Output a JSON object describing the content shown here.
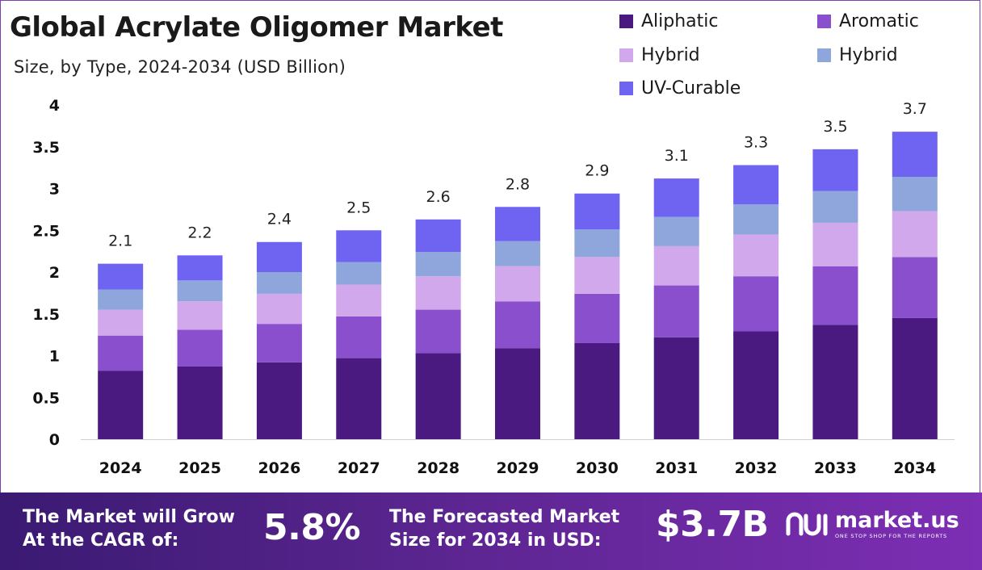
{
  "title": "Global Acrylate Oligomer Market",
  "subtitle": "Size, by Type, 2024-2034 (USD Billion)",
  "legend": [
    {
      "label": "Aliphatic",
      "color": "#4a1a80"
    },
    {
      "label": "Aromatic",
      "color": "#8a4fcc"
    },
    {
      "label": "Hybrid",
      "color": "#d2a8ec"
    },
    {
      "label": "Hybrid",
      "color": "#8fa6dc"
    },
    {
      "label": "UV-Curable",
      "color": "#6f63f2"
    }
  ],
  "chart_data": {
    "type": "bar",
    "stacked": true,
    "title": "Global Acrylate Oligomer Market",
    "subtitle": "Size, by Type, 2024-2034 (USD Billion)",
    "xlabel": "",
    "ylabel": "",
    "ylim": [
      0,
      4
    ],
    "yticks": [
      "0",
      "0.5",
      "1",
      "1.5",
      "2",
      "2.5",
      "3",
      "3.5",
      "4"
    ],
    "categories": [
      "2024",
      "2025",
      "2026",
      "2027",
      "2028",
      "2029",
      "2030",
      "2031",
      "2032",
      "2033",
      "2034"
    ],
    "totals": [
      "2.1",
      "2.2",
      "2.4",
      "2.5",
      "2.6",
      "2.8",
      "2.9",
      "3.1",
      "3.3",
      "3.5",
      "3.7"
    ],
    "series": [
      {
        "name": "Aliphatic",
        "color": "#4a1a80",
        "values": [
          0.82,
          0.87,
          0.92,
          0.97,
          1.03,
          1.09,
          1.15,
          1.22,
          1.29,
          1.37,
          1.45
        ]
      },
      {
        "name": "Aromatic",
        "color": "#8a4fcc",
        "values": [
          0.42,
          0.44,
          0.46,
          0.5,
          0.52,
          0.56,
          0.59,
          0.62,
          0.66,
          0.7,
          0.73
        ]
      },
      {
        "name": "Hybrid",
        "color": "#d2a8ec",
        "values": [
          0.31,
          0.34,
          0.36,
          0.38,
          0.4,
          0.42,
          0.44,
          0.47,
          0.5,
          0.52,
          0.55
        ]
      },
      {
        "name": "Hybrid",
        "color": "#8fa6dc",
        "values": [
          0.24,
          0.25,
          0.26,
          0.27,
          0.29,
          0.3,
          0.33,
          0.35,
          0.36,
          0.38,
          0.41
        ]
      },
      {
        "name": "UV-Curable",
        "color": "#6f63f2",
        "values": [
          0.31,
          0.3,
          0.36,
          0.38,
          0.39,
          0.41,
          0.43,
          0.46,
          0.47,
          0.5,
          0.54
        ]
      }
    ]
  },
  "banner": {
    "cagr_label": "The Market will Grow At the CAGR of:",
    "cagr_value": "5.8%",
    "forecast_label": "The Forecasted Market Size for 2034 in USD:",
    "forecast_value": "$3.7B",
    "logo_name": "market.us",
    "logo_tagline": "ONE STOP SHOP FOR THE REPORTS"
  }
}
